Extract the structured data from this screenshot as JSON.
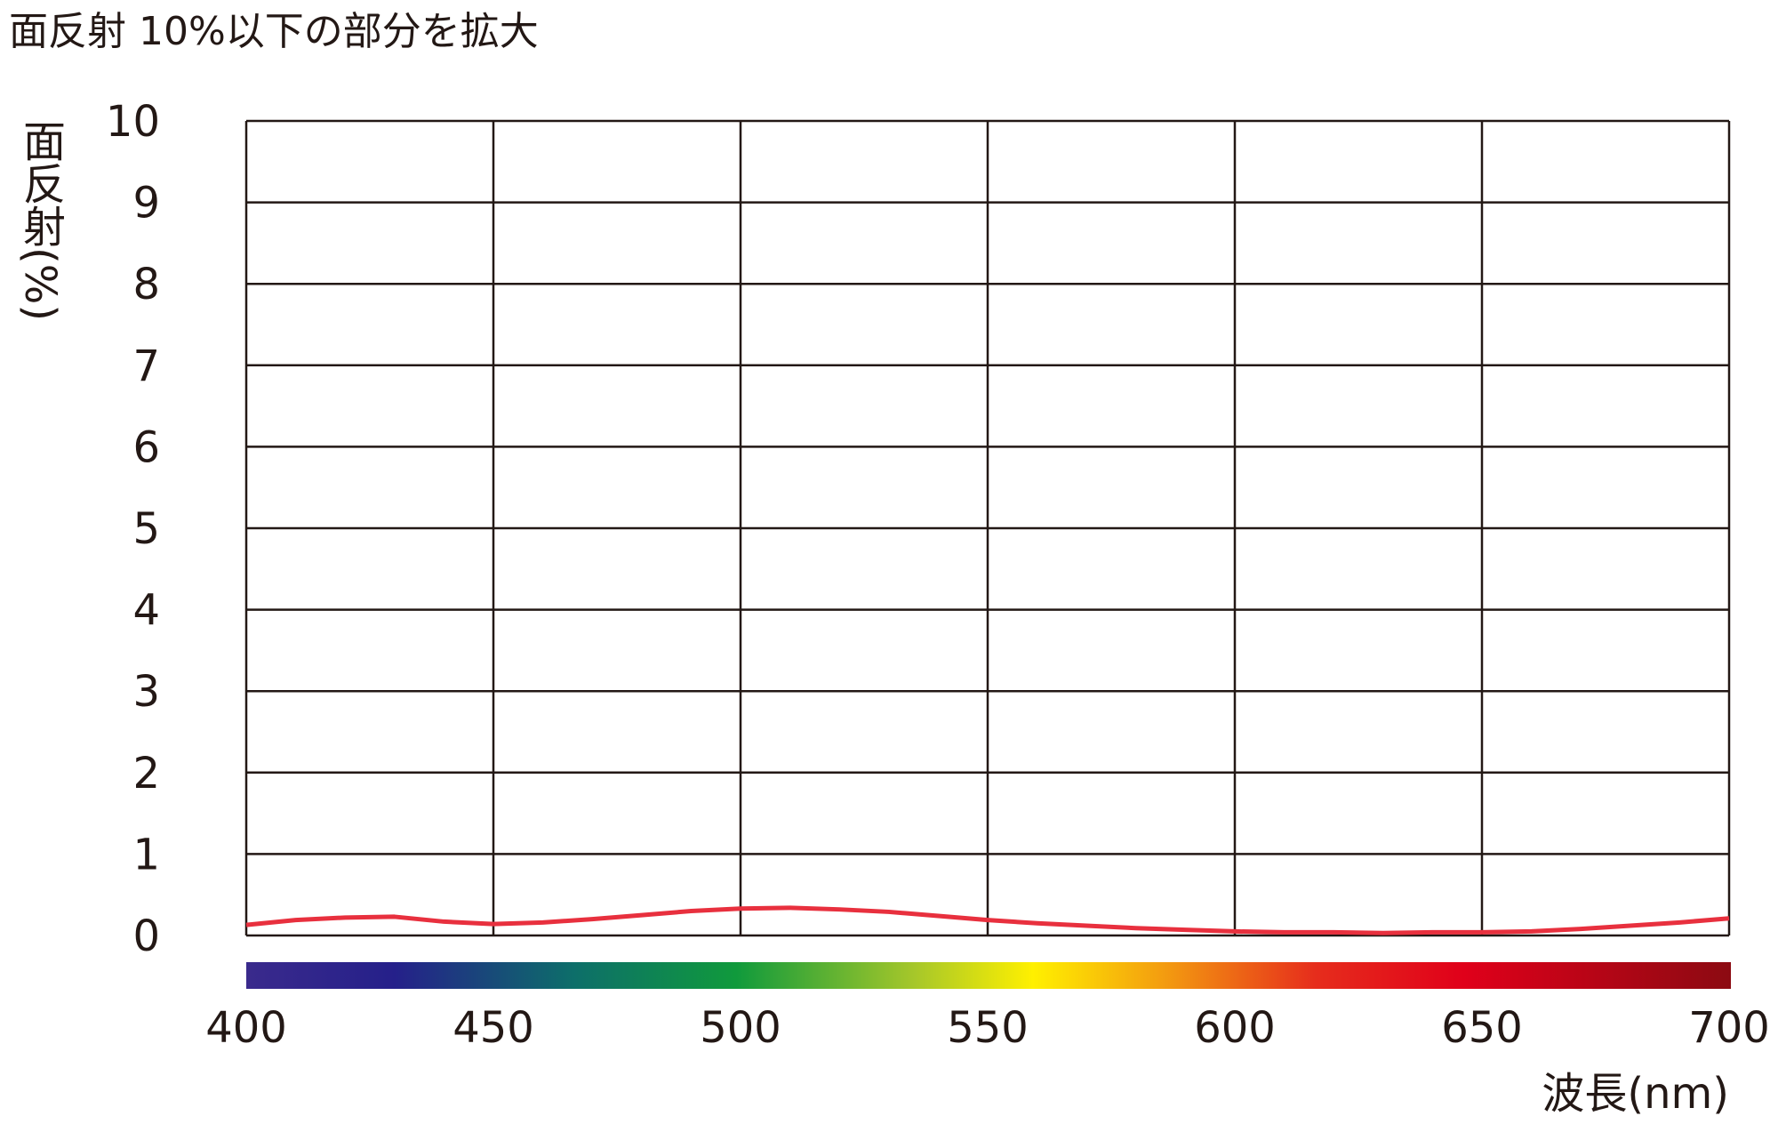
{
  "chart_data": {
    "type": "line",
    "title": "面反射 10%以下の部分を拡大",
    "y_label": "面反射(%)",
    "x_label": "波長(nm)",
    "x": [
      400,
      410,
      420,
      430,
      440,
      450,
      460,
      470,
      480,
      490,
      500,
      510,
      520,
      530,
      540,
      550,
      560,
      570,
      580,
      590,
      600,
      610,
      620,
      630,
      640,
      650,
      660,
      670,
      680,
      690,
      700
    ],
    "series": [
      {
        "name": "面反射",
        "color": "#e8303e",
        "values": [
          0.13,
          0.19,
          0.22,
          0.23,
          0.17,
          0.14,
          0.16,
          0.2,
          0.25,
          0.3,
          0.33,
          0.34,
          0.32,
          0.29,
          0.24,
          0.19,
          0.15,
          0.12,
          0.09,
          0.07,
          0.05,
          0.04,
          0.04,
          0.03,
          0.04,
          0.04,
          0.05,
          0.08,
          0.12,
          0.16,
          0.21
        ]
      }
    ],
    "xlim": [
      400,
      700
    ],
    "xticks": [
      400,
      450,
      500,
      550,
      600,
      650,
      700
    ],
    "ylim": [
      0,
      10
    ],
    "yticks": [
      0,
      1,
      2,
      3,
      4,
      5,
      6,
      7,
      8,
      9,
      10
    ],
    "grid": true
  }
}
